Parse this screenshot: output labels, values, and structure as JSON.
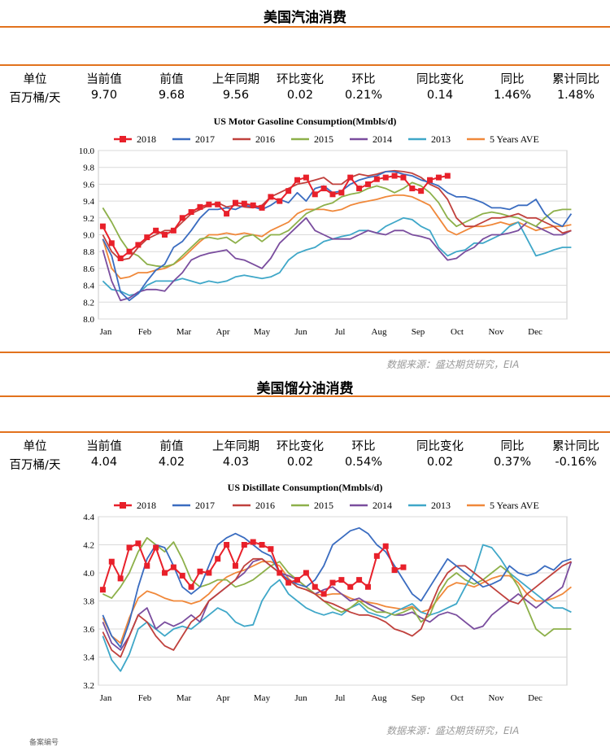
{
  "colors": {
    "accent_rule": "#e2721d",
    "s2018": "#e8202a",
    "s2017": "#3a6cc0",
    "s2016": "#c0413d",
    "s2015": "#8db04a",
    "s2014": "#7a4d9e",
    "s2013": "#3fa7c8",
    "s5yr": "#f0883a"
  },
  "stats_headers": [
    "单位",
    "当前值",
    "前值",
    "上年同期",
    "环比变化",
    "环比",
    "同比变化",
    "同比",
    "累计同比"
  ],
  "gasoline": {
    "section_title": "美国汽油消费",
    "stats_values": [
      "百万桶/天",
      "9.70",
      "9.68",
      "9.56",
      "0.02",
      "0.21%",
      "0.14",
      "1.46%",
      "1.48%"
    ],
    "source": "数据来源：盛达期货研究，EIA"
  },
  "distillate": {
    "section_title": "美国馏分油消费",
    "stats_values": [
      "百万桶/天",
      "4.04",
      "4.02",
      "4.03",
      "0.02",
      "0.54%",
      "0.02",
      "0.37%",
      "-0.16%"
    ],
    "source": "数据来源：盛达期货研究，EIA"
  },
  "footnote": "备案编号",
  "chart_data": [
    {
      "type": "line",
      "title": "US Motor Gasoline Consumption(Mmbls/d)",
      "x_ticks": [
        "Jan",
        "Feb",
        "Mar",
        "Apr",
        "May",
        "Jun",
        "Jul",
        "Aug",
        "Sep",
        "Oct",
        "Nov",
        "Dec"
      ],
      "ylim": [
        8.0,
        10.0
      ],
      "y_ticks": [
        "8.0",
        "8.2",
        "8.4",
        "8.6",
        "8.8",
        "9.0",
        "9.2",
        "9.4",
        "9.6",
        "9.8",
        "10.0"
      ],
      "grid": true,
      "legend_position": "top",
      "x_unit": "week",
      "series": [
        {
          "name": "2018",
          "color_key": "s2018",
          "markers": true,
          "values": [
            9.1,
            8.9,
            8.72,
            8.8,
            8.88,
            8.97,
            9.05,
            9.0,
            9.05,
            9.2,
            9.27,
            9.33,
            9.36,
            9.36,
            9.25,
            9.38,
            9.37,
            9.35,
            9.32,
            9.45,
            9.4,
            9.52,
            9.65,
            9.68,
            9.48,
            9.55,
            9.48,
            9.5,
            9.68,
            9.55,
            9.6,
            9.66,
            9.68,
            9.7,
            9.68,
            9.55,
            9.52,
            9.65,
            9.68,
            9.7
          ]
        },
        {
          "name": "2017",
          "color_key": "s2017",
          "markers": false,
          "values": [
            8.95,
            8.75,
            8.32,
            8.22,
            8.3,
            8.45,
            8.58,
            8.65,
            8.85,
            8.92,
            9.05,
            9.2,
            9.3,
            9.3,
            9.32,
            9.3,
            9.35,
            9.33,
            9.3,
            9.35,
            9.42,
            9.38,
            9.5,
            9.4,
            9.55,
            9.58,
            9.5,
            9.52,
            9.6,
            9.65,
            9.68,
            9.7,
            9.75,
            9.75,
            9.72,
            9.7,
            9.65,
            9.62,
            9.58,
            9.5,
            9.45,
            9.45,
            9.42,
            9.38,
            9.32,
            9.32,
            9.3,
            9.35,
            9.35,
            9.42,
            9.25,
            9.15,
            9.1,
            9.25
          ]
        },
        {
          "name": "2016",
          "color_key": "s2016",
          "markers": false,
          "values": [
            9.0,
            8.8,
            8.7,
            8.72,
            8.85,
            8.95,
            9.0,
            9.05,
            9.05,
            9.15,
            9.25,
            9.3,
            9.35,
            9.38,
            9.33,
            9.35,
            9.33,
            9.32,
            9.35,
            9.45,
            9.5,
            9.55,
            9.6,
            9.62,
            9.65,
            9.68,
            9.6,
            9.6,
            9.68,
            9.72,
            9.7,
            9.72,
            9.75,
            9.76,
            9.75,
            9.73,
            9.68,
            9.6,
            9.55,
            9.42,
            9.2,
            9.1,
            9.1,
            9.15,
            9.2,
            9.2,
            9.22,
            9.25,
            9.2,
            9.2,
            9.15,
            9.1,
            9.02,
            9.05
          ]
        },
        {
          "name": "2015",
          "color_key": "s2015",
          "markers": false,
          "values": [
            9.32,
            9.15,
            8.95,
            8.8,
            8.75,
            8.65,
            8.63,
            8.62,
            8.65,
            8.75,
            8.85,
            8.95,
            8.97,
            8.95,
            8.97,
            8.9,
            8.98,
            9.0,
            8.92,
            9.0,
            9.0,
            9.05,
            9.15,
            9.25,
            9.3,
            9.35,
            9.38,
            9.45,
            9.48,
            9.5,
            9.55,
            9.58,
            9.55,
            9.5,
            9.55,
            9.62,
            9.58,
            9.5,
            9.38,
            9.2,
            9.1,
            9.15,
            9.2,
            9.25,
            9.27,
            9.25,
            9.22,
            9.2,
            9.15,
            9.1,
            9.2,
            9.28,
            9.3,
            9.3
          ]
        },
        {
          "name": "2014",
          "color_key": "s2014",
          "markers": false,
          "values": [
            8.82,
            8.45,
            8.22,
            8.25,
            8.32,
            8.35,
            8.35,
            8.33,
            8.45,
            8.55,
            8.7,
            8.75,
            8.78,
            8.8,
            8.82,
            8.72,
            8.7,
            8.65,
            8.6,
            8.72,
            8.9,
            9.0,
            9.1,
            9.2,
            9.05,
            9.0,
            8.95,
            8.95,
            8.95,
            9.0,
            9.05,
            9.02,
            9.0,
            9.05,
            9.05,
            9.0,
            8.98,
            8.95,
            8.82,
            8.7,
            8.72,
            8.8,
            8.85,
            8.95,
            9.0,
            9.0,
            9.02,
            9.05,
            9.15,
            9.1,
            9.05,
            9.0,
            9.0,
            9.05
          ]
        },
        {
          "name": "2013",
          "color_key": "s2013",
          "markers": false,
          "values": [
            8.45,
            8.35,
            8.33,
            8.28,
            8.3,
            8.4,
            8.45,
            8.45,
            8.45,
            8.48,
            8.45,
            8.42,
            8.45,
            8.43,
            8.45,
            8.5,
            8.52,
            8.5,
            8.48,
            8.5,
            8.55,
            8.7,
            8.78,
            8.82,
            8.85,
            8.92,
            8.95,
            8.98,
            9.0,
            9.05,
            9.05,
            9.02,
            9.1,
            9.15,
            9.2,
            9.18,
            9.1,
            9.05,
            8.85,
            8.75,
            8.8,
            8.82,
            8.9,
            8.9,
            8.95,
            9.0,
            9.1,
            9.15,
            8.95,
            8.75,
            8.78,
            8.82,
            8.85,
            8.85
          ]
        },
        {
          "name": "5 Years AVE",
          "color_key": "s5yr",
          "markers": false,
          "values": [
            8.95,
            8.6,
            8.48,
            8.5,
            8.55,
            8.55,
            8.58,
            8.6,
            8.65,
            8.72,
            8.82,
            8.92,
            9.0,
            9.0,
            9.02,
            9.0,
            9.02,
            9.0,
            8.98,
            9.05,
            9.1,
            9.15,
            9.25,
            9.3,
            9.3,
            9.3,
            9.28,
            9.3,
            9.35,
            9.38,
            9.4,
            9.42,
            9.45,
            9.47,
            9.47,
            9.45,
            9.4,
            9.35,
            9.2,
            9.05,
            9.0,
            9.05,
            9.1,
            9.1,
            9.12,
            9.15,
            9.12,
            9.15,
            9.1,
            9.05,
            9.08,
            9.1,
            9.1,
            9.12
          ]
        }
      ]
    },
    {
      "type": "line",
      "title": "US Distillate Consumption(Mmbls/d)",
      "x_ticks": [
        "Jan",
        "Feb",
        "Mar",
        "Apr",
        "May",
        "Jun",
        "Jul",
        "Aug",
        "Sep",
        "Oct",
        "Nov",
        "Dec"
      ],
      "ylim": [
        3.2,
        4.4
      ],
      "y_ticks": [
        "3.2",
        "3.4",
        "3.6",
        "3.8",
        "4.0",
        "4.2",
        "4.4"
      ],
      "grid": true,
      "legend_position": "top",
      "x_unit": "week",
      "series": [
        {
          "name": "2018",
          "color_key": "s2018",
          "markers": true,
          "values": [
            3.88,
            4.08,
            3.96,
            4.18,
            4.21,
            4.05,
            4.18,
            4.0,
            4.04,
            3.98,
            3.9,
            4.01,
            4.0,
            4.1,
            4.2,
            4.05,
            4.2,
            4.22,
            4.2,
            4.17,
            4.0,
            3.93,
            3.95,
            4.0,
            3.9,
            3.85,
            3.93,
            3.95,
            3.9,
            3.95,
            3.9,
            4.12,
            4.19,
            4.02,
            4.04
          ]
        },
        {
          "name": "2017",
          "color_key": "s2017",
          "markers": false,
          "values": [
            3.7,
            3.55,
            3.47,
            3.65,
            3.9,
            4.1,
            4.2,
            4.18,
            4.05,
            3.9,
            3.85,
            3.9,
            4.05,
            4.2,
            4.25,
            4.28,
            4.25,
            4.2,
            4.15,
            4.12,
            4.0,
            3.95,
            3.92,
            3.9,
            3.95,
            4.05,
            4.2,
            4.25,
            4.3,
            4.32,
            4.28,
            4.2,
            4.15,
            4.05,
            3.95,
            3.85,
            3.8,
            3.9,
            4.0,
            4.1,
            4.05,
            4.0,
            3.95,
            3.9,
            3.92,
            3.95,
            4.05,
            4.0,
            3.98,
            4.0,
            4.05,
            4.02,
            4.08,
            4.1
          ]
        },
        {
          "name": "2016",
          "color_key": "s2016",
          "markers": false,
          "values": [
            3.58,
            3.45,
            3.4,
            3.55,
            3.7,
            3.65,
            3.55,
            3.48,
            3.45,
            3.55,
            3.65,
            3.7,
            3.8,
            3.85,
            3.9,
            3.95,
            4.05,
            4.1,
            4.1,
            4.05,
            4.0,
            3.95,
            3.9,
            3.88,
            3.85,
            3.8,
            3.78,
            3.75,
            3.72,
            3.7,
            3.7,
            3.68,
            3.65,
            3.6,
            3.58,
            3.55,
            3.6,
            3.75,
            3.9,
            4.0,
            4.05,
            4.05,
            4.0,
            3.95,
            3.9,
            3.85,
            3.8,
            3.78,
            3.85,
            3.9,
            3.95,
            4.0,
            4.05,
            4.08
          ]
        },
        {
          "name": "2015",
          "color_key": "s2015",
          "markers": false,
          "values": [
            3.85,
            3.82,
            3.9,
            4.0,
            4.15,
            4.25,
            4.2,
            4.15,
            4.22,
            4.1,
            3.95,
            3.9,
            3.92,
            3.95,
            3.95,
            3.9,
            3.92,
            3.95,
            4.0,
            4.05,
            4.08,
            4.0,
            3.95,
            3.9,
            3.85,
            3.8,
            3.75,
            3.72,
            3.75,
            3.8,
            3.75,
            3.72,
            3.72,
            3.7,
            3.72,
            3.75,
            3.65,
            3.7,
            3.85,
            3.95,
            4.0,
            3.95,
            3.92,
            3.95,
            4.0,
            4.05,
            4.0,
            3.9,
            3.75,
            3.6,
            3.55,
            3.6,
            3.6,
            3.6
          ]
        },
        {
          "name": "2014",
          "color_key": "s2014",
          "markers": false,
          "values": [
            3.65,
            3.5,
            3.45,
            3.55,
            3.7,
            3.75,
            3.6,
            3.65,
            3.62,
            3.65,
            3.7,
            3.65,
            3.8,
            3.85,
            3.9,
            3.95,
            4.0,
            4.08,
            4.1,
            4.05,
            4.0,
            3.98,
            3.95,
            3.9,
            3.85,
            3.88,
            3.9,
            3.85,
            3.8,
            3.82,
            3.78,
            3.75,
            3.72,
            3.7,
            3.7,
            3.72,
            3.68,
            3.65,
            3.7,
            3.72,
            3.7,
            3.65,
            3.6,
            3.62,
            3.7,
            3.75,
            3.8,
            3.85,
            3.8,
            3.75,
            3.8,
            3.85,
            3.9,
            4.08
          ]
        },
        {
          "name": "2013",
          "color_key": "s2013",
          "markers": false,
          "values": [
            3.55,
            3.38,
            3.3,
            3.42,
            3.6,
            3.65,
            3.6,
            3.55,
            3.6,
            3.62,
            3.6,
            3.65,
            3.7,
            3.75,
            3.72,
            3.65,
            3.62,
            3.63,
            3.8,
            3.9,
            3.95,
            3.85,
            3.8,
            3.75,
            3.72,
            3.7,
            3.72,
            3.7,
            3.75,
            3.78,
            3.72,
            3.7,
            3.68,
            3.72,
            3.75,
            3.78,
            3.72,
            3.7,
            3.72,
            3.75,
            3.78,
            3.9,
            4.0,
            4.2,
            4.18,
            4.1,
            4.0,
            3.95,
            3.9,
            3.85,
            3.8,
            3.75,
            3.75,
            3.72
          ]
        },
        {
          "name": "5 Years AVE",
          "color_key": "s5yr",
          "markers": false,
          "values": [
            3.68,
            3.55,
            3.5,
            3.68,
            3.82,
            3.87,
            3.85,
            3.82,
            3.8,
            3.8,
            3.78,
            3.8,
            3.85,
            3.92,
            3.97,
            4.0,
            4.02,
            4.05,
            4.08,
            4.08,
            4.05,
            3.96,
            3.9,
            3.88,
            3.85,
            3.84,
            3.85,
            3.85,
            3.82,
            3.8,
            3.79,
            3.78,
            3.76,
            3.75,
            3.74,
            3.76,
            3.72,
            3.74,
            3.82,
            3.9,
            3.93,
            3.92,
            3.9,
            3.93,
            3.96,
            3.98,
            3.98,
            3.93,
            3.85,
            3.8,
            3.8,
            3.82,
            3.85,
            3.9
          ]
        }
      ]
    }
  ]
}
